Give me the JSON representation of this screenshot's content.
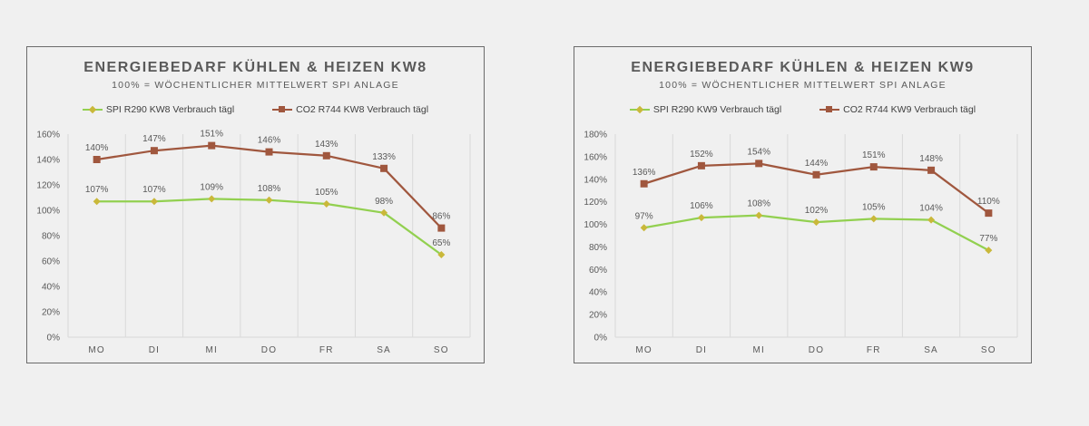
{
  "charts": [
    {
      "title": "ENERGIEBEDARF KÜHLEN & HEIZEN KW8",
      "subtitle": "100% = WÖCHENTLICHER MITTELWERT SPI ANLAGE"
    },
    {
      "title": "ENERGIEBEDARF KÜHLEN & HEIZEN KW9",
      "subtitle": "100% = WÖCHENTLICHER MITTELWERT SPI ANLAGE"
    }
  ],
  "colors": {
    "spi": "#92d050",
    "spi_marker": "#c9b83a",
    "co2": "#a0573e",
    "grid": "#d9d9d9",
    "axis_text": "#595959"
  },
  "chart_data": [
    {
      "type": "line",
      "title": "ENERGIEBEDARF KÜHLEN & HEIZEN KW8",
      "subtitle": "100% = WÖCHENTLICHER MITTELWERT SPI ANLAGE",
      "categories": [
        "MO",
        "DI",
        "MI",
        "DO",
        "FR",
        "SA",
        "SO"
      ],
      "ylim": [
        0,
        160
      ],
      "yticks": [
        "0%",
        "20%",
        "40%",
        "60%",
        "80%",
        "100%",
        "120%",
        "140%",
        "160%"
      ],
      "grid": "vertical",
      "legend": "top",
      "series": [
        {
          "name": "SPI R290 KW8 Verbrauch tägl",
          "values": [
            107,
            107,
            109,
            108,
            105,
            98,
            65
          ],
          "labels": [
            "107%",
            "107%",
            "109%",
            "108%",
            "105%",
            "98%",
            "65%"
          ],
          "marker": "diamond"
        },
        {
          "name": "CO2 R744 KW8 Verbrauch tägl",
          "values": [
            140,
            147,
            151,
            146,
            143,
            133,
            86
          ],
          "labels": [
            "140%",
            "147%",
            "151%",
            "146%",
            "143%",
            "133%",
            "86%"
          ],
          "marker": "square"
        }
      ]
    },
    {
      "type": "line",
      "title": "ENERGIEBEDARF KÜHLEN & HEIZEN KW9",
      "subtitle": "100% = WÖCHENTLICHER MITTELWERT SPI ANLAGE",
      "categories": [
        "MO",
        "DI",
        "MI",
        "DO",
        "FR",
        "SA",
        "SO"
      ],
      "ylim": [
        0,
        180
      ],
      "yticks": [
        "0%",
        "20%",
        "40%",
        "60%",
        "80%",
        "100%",
        "120%",
        "140%",
        "160%",
        "180%"
      ],
      "grid": "vertical",
      "legend": "top",
      "series": [
        {
          "name": "SPI R290 KW9 Verbrauch tägl",
          "values": [
            97,
            106,
            108,
            102,
            105,
            104,
            77
          ],
          "labels": [
            "97%",
            "106%",
            "108%",
            "102%",
            "105%",
            "104%",
            "77%"
          ],
          "marker": "diamond"
        },
        {
          "name": "CO2 R744 KW9 Verbrauch tägl",
          "values": [
            136,
            152,
            154,
            144,
            151,
            148,
            110
          ],
          "labels": [
            "136%",
            "152%",
            "154%",
            "144%",
            "151%",
            "148%",
            "110%"
          ],
          "marker": "square"
        }
      ]
    }
  ]
}
